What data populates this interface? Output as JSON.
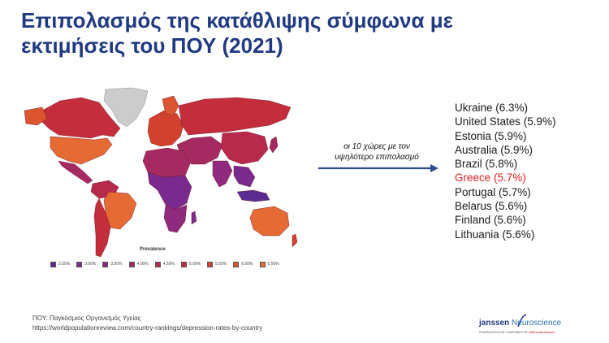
{
  "slide": {
    "title_line1": "Επιπολασμός της κατάθλιψης σύμφωνα με",
    "title_line2": "εκτιμήσεις του ΠΟΥ (2021)"
  },
  "map": {
    "legend_title": "Prevalence",
    "legend": [
      {
        "label": "2.50%",
        "color": "#5b2c8f"
      },
      {
        "label": "3.00%",
        "color": "#7a2a8e"
      },
      {
        "label": "3.50%",
        "color": "#8f2a7e"
      },
      {
        "label": "4.00%",
        "color": "#a52a62"
      },
      {
        "label": "4.50%",
        "color": "#b82a4c"
      },
      {
        "label": "5.00%",
        "color": "#c42d3c"
      },
      {
        "label": "5.50%",
        "color": "#d2402e"
      },
      {
        "label": "6.00%",
        "color": "#dc5430"
      },
      {
        "label": "6.50%",
        "color": "#e56a34"
      }
    ],
    "no_data_color": "#cccccc"
  },
  "callout": {
    "line1": "οι 10 χώρες με τον",
    "line2": "υψηλότερο επιπολασμό"
  },
  "countries": [
    "Ukraine (6.3%)",
    "United States (5.9%)",
    "Estonia (5.9%)",
    "Australia (5.9%)",
    "Brazil (5.8%)",
    "Greece (5.7%)",
    "Portugal (5.7%)",
    "Belarus (5.6%)",
    "Finland (5.6%)",
    "Lithuania (5.6%)"
  ],
  "highlight_index": 5,
  "source": {
    "line1": "ΠΟΥ: Παγκόσμιος Οργανισμός Υγείας",
    "line2": "https://worldpopulationreview.com/country-rankings/depression-rates-by-country"
  },
  "logo": {
    "brand": "janssen",
    "division": "Neuroscience",
    "sub": "PHARMACEUTICAL COMPANIES OF",
    "parent": "Johnson&Johnson"
  }
}
